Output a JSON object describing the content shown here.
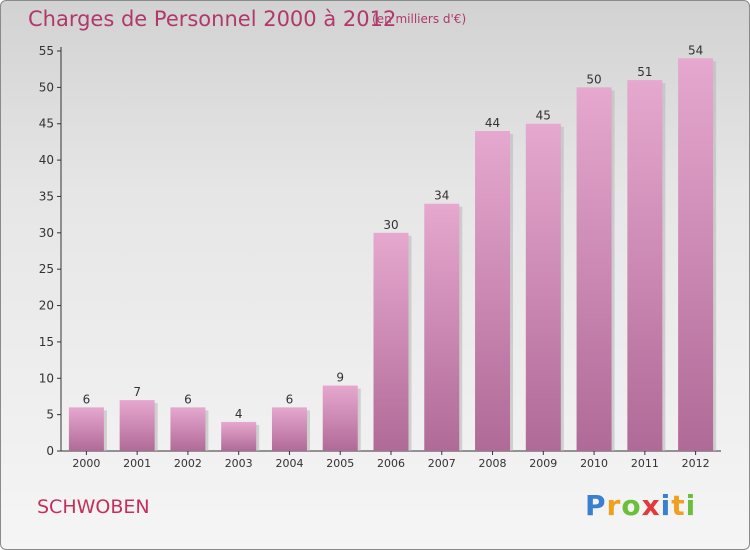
{
  "chart_data": {
    "type": "bar",
    "title": "Charges de Personnel 2000 à 2012",
    "subtitle": "(en milliers d'€)",
    "categories": [
      "2000",
      "2001",
      "2002",
      "2003",
      "2004",
      "2005",
      "2006",
      "2007",
      "2008",
      "2009",
      "2010",
      "2011",
      "2012"
    ],
    "values": [
      6,
      7,
      6,
      4,
      6,
      9,
      30,
      34,
      44,
      45,
      50,
      51,
      54
    ],
    "data_labels": [
      "6",
      "7",
      "6",
      "4",
      "6",
      "9",
      "30",
      "34",
      "44",
      "45",
      "50",
      "51",
      "54"
    ],
    "ylim": [
      0,
      55
    ],
    "yticks": [
      "0",
      "5",
      "10",
      "15",
      "20",
      "25",
      "30",
      "35",
      "40",
      "45",
      "50",
      "55"
    ],
    "xlabel": "",
    "ylabel": "",
    "grid": false,
    "bar_color": "#d98fbb"
  },
  "footer": {
    "commune": "SCHWOBEN",
    "logo_letters": [
      "P",
      "r",
      "o",
      "x",
      "i",
      "t",
      "i"
    ],
    "logo_colors": [
      "#3a7fd0",
      "#f0a020",
      "#6bbf3a",
      "#e03a3a",
      "#3a7fd0",
      "#f0a020",
      "#6bbf3a"
    ]
  }
}
